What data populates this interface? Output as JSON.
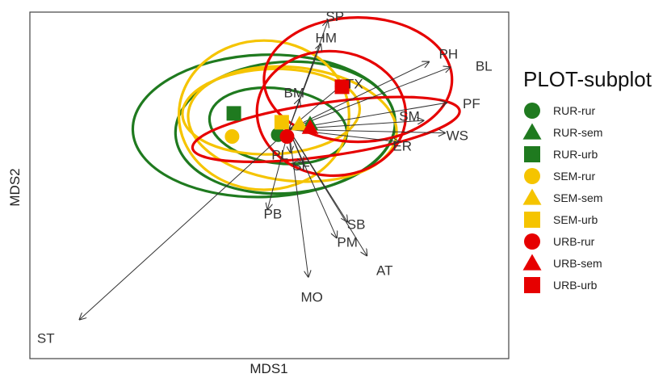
{
  "chart_data": {
    "type": "scatter",
    "title": "",
    "xlabel": "MDS1",
    "ylabel": "MDS2",
    "xlim": [
      -1.5,
      1.2
    ],
    "ylim": [
      -1.2,
      0.75
    ],
    "colors": {
      "rur": "#1f7a1f",
      "sem": "#f5c400",
      "urb": "#e60000"
    },
    "legend": {
      "title": "PLOT-subplot",
      "position": "right",
      "entries": [
        {
          "label": "RUR-rur",
          "color": "#1f7a1f",
          "shape": "circle"
        },
        {
          "label": "RUR-sem",
          "color": "#1f7a1f",
          "shape": "triangle"
        },
        {
          "label": "RUR-urb",
          "color": "#1f7a1f",
          "shape": "square"
        },
        {
          "label": "SEM-rur",
          "color": "#f5c400",
          "shape": "circle"
        },
        {
          "label": "SEM-sem",
          "color": "#f5c400",
          "shape": "triangle"
        },
        {
          "label": "SEM-urb",
          "color": "#f5c400",
          "shape": "square"
        },
        {
          "label": "URB-rur",
          "color": "#e60000",
          "shape": "circle"
        },
        {
          "label": "URB-sem",
          "color": "#e60000",
          "shape": "triangle"
        },
        {
          "label": "URB-urb",
          "color": "#e60000",
          "shape": "square"
        }
      ]
    },
    "centroids": [
      {
        "group": "RUR-rur",
        "x": -0.1,
        "y": 0.06,
        "shape": "circle",
        "color": "#1f7a1f"
      },
      {
        "group": "RUR-sem",
        "x": 0.08,
        "y": 0.12,
        "shape": "triangle",
        "color": "#1f7a1f"
      },
      {
        "group": "RUR-urb",
        "x": -0.35,
        "y": 0.18,
        "shape": "square",
        "color": "#1f7a1f"
      },
      {
        "group": "SEM-rur",
        "x": -0.36,
        "y": 0.05,
        "shape": "circle",
        "color": "#f5c400"
      },
      {
        "group": "SEM-sem",
        "x": 0.02,
        "y": 0.12,
        "shape": "triangle",
        "color": "#f5c400"
      },
      {
        "group": "SEM-urb",
        "x": -0.08,
        "y": 0.13,
        "shape": "square",
        "color": "#f5c400"
      },
      {
        "group": "URB-rur",
        "x": -0.05,
        "y": 0.05,
        "shape": "circle",
        "color": "#e60000"
      },
      {
        "group": "URB-sem",
        "x": 0.08,
        "y": 0.1,
        "shape": "triangle",
        "color": "#e60000"
      },
      {
        "group": "URB-urb",
        "x": 0.26,
        "y": 0.33,
        "shape": "square",
        "color": "#e60000"
      }
    ],
    "ellipses": [
      {
        "group": "RUR-rur",
        "color": "#1f7a1f",
        "cx": -0.06,
        "cy": 0.1,
        "rx": 0.62,
        "ry": 0.37,
        "angle": 4
      },
      {
        "group": "RUR-sem",
        "color": "#1f7a1f",
        "cx": -0.1,
        "cy": 0.11,
        "rx": 0.39,
        "ry": 0.21,
        "angle": -8
      },
      {
        "group": "RUR-urb",
        "color": "#1f7a1f",
        "cx": -0.18,
        "cy": 0.11,
        "rx": 0.74,
        "ry": 0.4,
        "angle": 2
      },
      {
        "group": "SEM-rur",
        "color": "#f5c400",
        "cx": -0.18,
        "cy": 0.17,
        "rx": 0.48,
        "ry": 0.42,
        "angle": 0
      },
      {
        "group": "SEM-sem",
        "color": "#f5c400",
        "cx": -0.02,
        "cy": 0.12,
        "rx": 0.59,
        "ry": 0.32,
        "angle": -6
      },
      {
        "group": "SEM-urb",
        "color": "#f5c400",
        "cx": -0.14,
        "cy": 0.19,
        "rx": 0.5,
        "ry": 0.24,
        "angle": 2
      },
      {
        "group": "URB-rur",
        "color": "#e60000",
        "cx": 0.17,
        "cy": 0.09,
        "rx": 0.76,
        "ry": 0.15,
        "angle": 8
      },
      {
        "group": "URB-sem",
        "color": "#e60000",
        "cx": 0.2,
        "cy": 0.18,
        "rx": 0.42,
        "ry": 0.35,
        "angle": -4
      },
      {
        "group": "URB-urb",
        "color": "#e60000",
        "cx": 0.35,
        "cy": 0.37,
        "rx": 0.53,
        "ry": 0.35,
        "angle": 0
      }
    ],
    "vector_origin": {
      "x": -0.04,
      "y": 0.09
    },
    "vectors": [
      {
        "label": "SP",
        "x": 0.18,
        "y": 0.7,
        "lx": 0.22,
        "ly": 0.72
      },
      {
        "label": "HM",
        "x": 0.14,
        "y": 0.57,
        "lx": 0.17,
        "ly": 0.6
      },
      {
        "label": "PH",
        "x": 0.75,
        "y": 0.47,
        "lx": 0.86,
        "ly": 0.51
      },
      {
        "label": "BL",
        "x": 0.87,
        "y": 0.44,
        "lx": 1.06,
        "ly": 0.44
      },
      {
        "label": "TX",
        "x": 0.26,
        "y": 0.34,
        "lx": 0.33,
        "ly": 0.34
      },
      {
        "label": "BM",
        "x": 0.02,
        "y": 0.26,
        "lx": -0.01,
        "ly": 0.29
      },
      {
        "label": "PF",
        "x": 0.85,
        "y": 0.24,
        "lx": 0.99,
        "ly": 0.23
      },
      {
        "label": "SM",
        "x": 0.72,
        "y": 0.14,
        "lx": 0.64,
        "ly": 0.16
      },
      {
        "label": "WS",
        "x": 0.84,
        "y": 0.07,
        "lx": 0.91,
        "ly": 0.05
      },
      {
        "label": "ER",
        "x": 0.58,
        "y": 0.02,
        "lx": 0.6,
        "ly": -0.01
      },
      {
        "label": "PL",
        "x": -0.03,
        "y": -0.04,
        "lx": -0.09,
        "ly": -0.06
      },
      {
        "label": "SF",
        "x": 0.04,
        "y": -0.1,
        "lx": 0.03,
        "ly": -0.12
      },
      {
        "label": "PB",
        "x": -0.16,
        "y": -0.36,
        "lx": -0.13,
        "ly": -0.39
      },
      {
        "label": "SB",
        "x": 0.29,
        "y": -0.43,
        "lx": 0.34,
        "ly": -0.45
      },
      {
        "label": "PM",
        "x": 0.23,
        "y": -0.52,
        "lx": 0.29,
        "ly": -0.55
      },
      {
        "label": "AT",
        "x": 0.4,
        "y": -0.62,
        "lx": 0.5,
        "ly": -0.71
      },
      {
        "label": "MO",
        "x": 0.07,
        "y": -0.74,
        "lx": 0.09,
        "ly": -0.86
      },
      {
        "label": "ST",
        "x": -1.22,
        "y": -0.98,
        "lx": -1.41,
        "ly": -1.09
      }
    ]
  }
}
